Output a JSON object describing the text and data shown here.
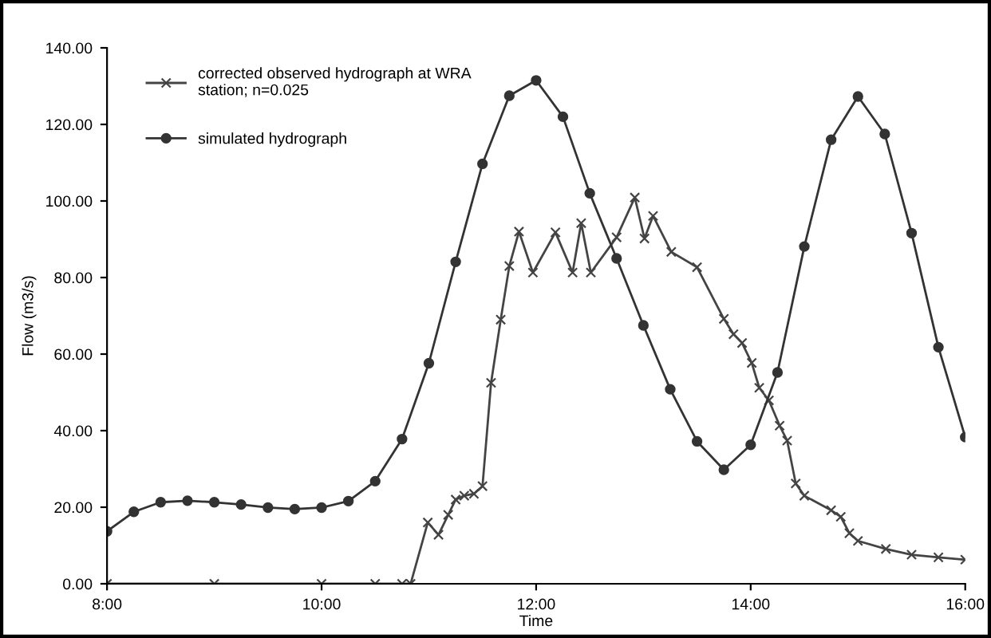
{
  "chart_data": {
    "type": "line",
    "xlabel": "Time",
    "ylabel": "Flow (m3/s)",
    "xlim": [
      8,
      16
    ],
    "xticks": [
      {
        "value": 8,
        "label": "8:00"
      },
      {
        "value": 10,
        "label": "10:00"
      },
      {
        "value": 12,
        "label": "12:00"
      },
      {
        "value": 14,
        "label": "14:00"
      },
      {
        "value": 16,
        "label": "16:00"
      }
    ],
    "ylim": [
      0,
      140
    ],
    "yticks": [
      {
        "value": 0,
        "label": "0.00"
      },
      {
        "value": 20,
        "label": "20.00"
      },
      {
        "value": 40,
        "label": "40.00"
      },
      {
        "value": 60,
        "label": "60.00"
      },
      {
        "value": 80,
        "label": "80.00"
      },
      {
        "value": 100,
        "label": "100.00"
      },
      {
        "value": 120,
        "label": "120.00"
      },
      {
        "value": 140,
        "label": "140.00"
      }
    ],
    "grid": false,
    "legend": "top left",
    "series": [
      {
        "name": "corrected observed hydrograph at WRA station; n=0.025",
        "color": "#444444",
        "marker": "cross",
        "x": [
          8,
          9,
          10,
          10.5,
          10.75,
          10.83,
          10.99,
          11.09,
          11.18,
          11.25,
          11.33,
          11.42,
          11.5,
          11.58,
          11.67,
          11.75,
          11.84,
          11.97,
          12.18,
          12.34,
          12.42,
          12.51,
          12.75,
          12.92,
          13.01,
          13.09,
          13.26,
          13.5,
          13.75,
          13.84,
          13.92,
          14.01,
          14.08,
          14.17,
          14.27,
          14.34,
          14.42,
          14.5,
          14.75,
          14.84,
          14.92,
          15.0,
          15.26,
          15.5,
          15.75,
          16.0
        ],
        "values": [
          0,
          0,
          0,
          0,
          0,
          0,
          16,
          12.8,
          18,
          22,
          23,
          23.5,
          25.5,
          52.5,
          69,
          83,
          92,
          81.3,
          91.8,
          81.3,
          94.2,
          81.3,
          90.5,
          100.9,
          90.2,
          96.1,
          86.7,
          82.7,
          69.2,
          65.2,
          62.9,
          57.7,
          51.2,
          47.9,
          41.3,
          37.4,
          26.2,
          23,
          19.2,
          17.5,
          13.2,
          11.2,
          9.1,
          7.6,
          6.9,
          6.3
        ]
      },
      {
        "name": "simulated hydrograph",
        "color": "#333333",
        "marker": "circle",
        "x": [
          8,
          8.25,
          8.5,
          8.75,
          9,
          9.25,
          9.5,
          9.75,
          10,
          10.25,
          10.5,
          10.75,
          11,
          11.25,
          11.5,
          11.75,
          12,
          12.25,
          12.5,
          12.75,
          13,
          13.25,
          13.5,
          13.75,
          14,
          14.25,
          14.5,
          14.75,
          15,
          15.25,
          15.5,
          15.75,
          16
        ],
        "values": [
          13.7,
          18.8,
          21.3,
          21.7,
          21.3,
          20.7,
          19.9,
          19.5,
          19.9,
          21.6,
          26.8,
          37.8,
          57.6,
          84.1,
          109.7,
          127.5,
          131.5,
          122,
          102,
          85,
          67.5,
          50.8,
          37.2,
          29.8,
          36.3,
          55.2,
          88.1,
          116,
          127.3,
          117.5,
          91.6,
          61.8,
          38.3
        ]
      }
    ]
  }
}
